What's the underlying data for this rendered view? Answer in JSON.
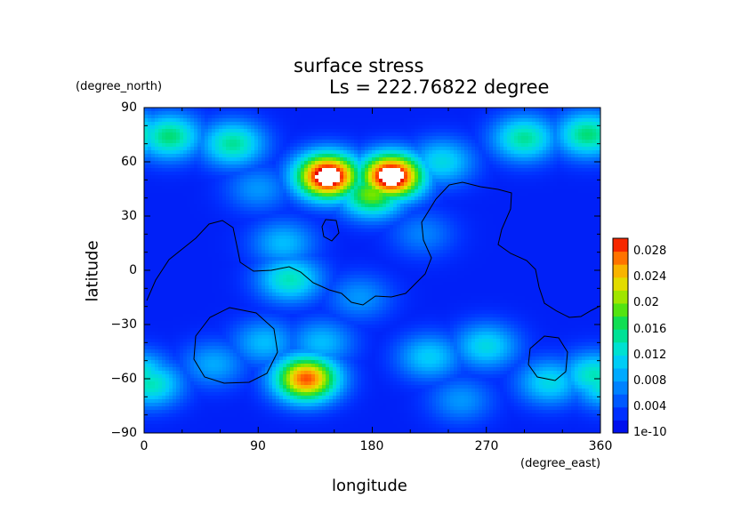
{
  "chart_data": {
    "type": "heatmap",
    "title": "surface stress",
    "subtitle": "Ls = 222.76822 degree",
    "xlabel": "longitude",
    "ylabel": "latitude",
    "x_units": "(degree_east)",
    "y_units": "(degree_north)",
    "xlim": [
      0,
      360
    ],
    "ylim": [
      -90,
      90
    ],
    "x_ticks": [
      "0",
      "90",
      "180",
      "270",
      "360"
    ],
    "y_ticks": [
      "90",
      "60",
      "30",
      "0",
      "−30",
      "−60",
      "−90"
    ],
    "colorbar": {
      "labels": [
        "0.028",
        "0.024",
        "0.02",
        "0.016",
        "0.012",
        "0.008",
        "0.004",
        "1e-10"
      ],
      "min": 0,
      "max": 0.03
    },
    "background_value": 0.002,
    "hotspots": [
      {
        "lon": 145,
        "lat": 52,
        "value": 0.034
      },
      {
        "lon": 195,
        "lat": 52,
        "value": 0.034
      },
      {
        "lon": 180,
        "lat": 42,
        "value": 0.02
      },
      {
        "lon": 128,
        "lat": -60,
        "value": 0.028
      },
      {
        "lon": 20,
        "lat": 74,
        "value": 0.016
      },
      {
        "lon": 70,
        "lat": 70,
        "value": 0.015
      },
      {
        "lon": 300,
        "lat": 73,
        "value": 0.015
      },
      {
        "lon": 350,
        "lat": 75,
        "value": 0.016
      },
      {
        "lon": 5,
        "lat": -63,
        "value": 0.014
      },
      {
        "lon": 355,
        "lat": -58,
        "value": 0.014
      },
      {
        "lon": 270,
        "lat": -42,
        "value": 0.012
      },
      {
        "lon": 225,
        "lat": -48,
        "value": 0.011
      },
      {
        "lon": 115,
        "lat": -5,
        "value": 0.014
      },
      {
        "lon": 110,
        "lat": 15,
        "value": 0.01
      },
      {
        "lon": 235,
        "lat": 60,
        "value": 0.012
      },
      {
        "lon": 95,
        "lat": -40,
        "value": 0.01
      },
      {
        "lon": 140,
        "lat": -40,
        "value": 0.01
      },
      {
        "lon": 55,
        "lat": -52,
        "value": 0.009
      },
      {
        "lon": 170,
        "lat": -15,
        "value": 0.008
      },
      {
        "lon": 220,
        "lat": 20,
        "value": 0.007
      },
      {
        "lon": 90,
        "lat": 45,
        "value": 0.008
      },
      {
        "lon": 320,
        "lat": -62,
        "value": 0.012
      },
      {
        "lon": 250,
        "lat": -72,
        "value": 0.008
      }
    ]
  }
}
